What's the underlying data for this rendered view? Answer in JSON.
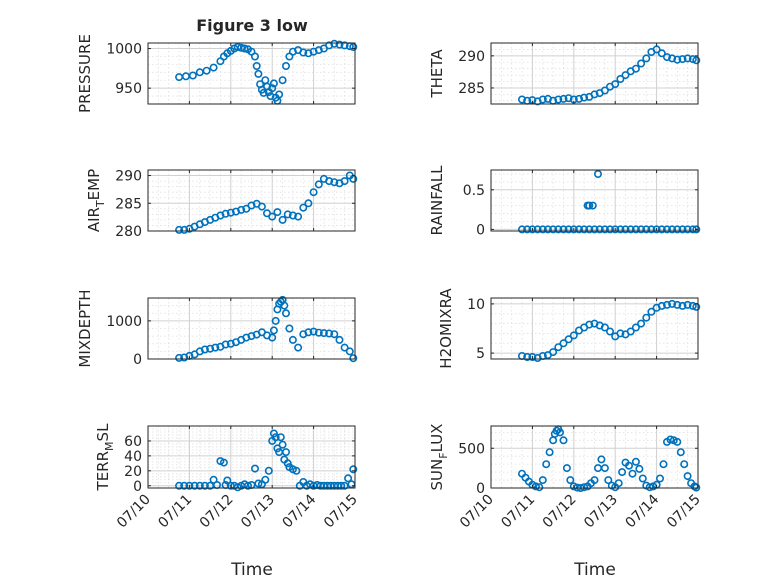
{
  "figure": {
    "title": "Figure 3 low",
    "xlabel": "Time",
    "marker_color": "#0072BD",
    "axis_color": "#262626",
    "grid_color": "#dfdfdf"
  },
  "chart_data": [
    {
      "type": "scatter",
      "ylabel": "PRESSURE",
      "xlim": [
        "07/10 00:00",
        "07/15 00:00"
      ],
      "ylim": [
        930,
        1007
      ],
      "yticks": [
        950,
        1000
      ],
      "ytick_labels": [
        "950",
        "1000"
      ],
      "xticks": [
        "07/10",
        "07/11",
        "07/12",
        "07/13",
        "07/14",
        "07/15"
      ],
      "show_xtick_labels": false,
      "grid": true,
      "minor_grid": true,
      "x": [
        "07/10 18:00",
        "07/10 22:00",
        "07/11 02:00",
        "07/11 06:00",
        "07/11 10:00",
        "07/11 14:00",
        "07/11 18:00",
        "07/11 20:00",
        "07/11 22:00",
        "07/12 00:00",
        "07/12 02:00",
        "07/12 04:00",
        "07/12 06:00",
        "07/12 08:00",
        "07/12 10:00",
        "07/12 12:00",
        "07/12 14:00",
        "07/12 15:00",
        "07/12 16:00",
        "07/12 17:00",
        "07/12 18:00",
        "07/12 19:00",
        "07/12 20:00",
        "07/12 21:00",
        "07/12 22:00",
        "07/12 23:00",
        "07/13 00:00",
        "07/13 01:00",
        "07/13 02:00",
        "07/13 03:00",
        "07/13 04:00",
        "07/13 06:00",
        "07/13 08:00",
        "07/13 10:00",
        "07/13 12:00",
        "07/13 15:00",
        "07/13 18:00",
        "07/13 21:00",
        "07/14 00:00",
        "07/14 03:00",
        "07/14 06:00",
        "07/14 09:00",
        "07/14 12:00",
        "07/14 15:00",
        "07/14 18:00",
        "07/14 21:00",
        "07/14 23:00"
      ],
      "y": [
        964,
        965,
        966,
        970,
        972,
        976,
        984,
        990,
        994,
        997,
        1000,
        1002,
        1001,
        1000,
        999,
        996,
        990,
        978,
        968,
        955,
        948,
        944,
        960,
        952,
        945,
        940,
        950,
        956,
        938,
        934,
        942,
        960,
        978,
        990,
        996,
        998,
        995,
        994,
        996,
        998,
        1000,
        1004,
        1006,
        1005,
        1004,
        1003,
        1002
      ]
    },
    {
      "type": "scatter",
      "ylabel": "THETA",
      "xlim": [
        "07/10 00:00",
        "07/15 00:00"
      ],
      "ylim": [
        282.5,
        292
      ],
      "yticks": [
        285,
        290
      ],
      "ytick_labels": [
        "285",
        "290"
      ],
      "xticks": [
        "07/10",
        "07/11",
        "07/12",
        "07/13",
        "07/14",
        "07/15"
      ],
      "show_xtick_labels": false,
      "grid": true,
      "minor_grid": true,
      "x": [
        "07/10 18:00",
        "07/10 21:00",
        "07/11 00:00",
        "07/11 03:00",
        "07/11 06:00",
        "07/11 09:00",
        "07/11 12:00",
        "07/11 15:00",
        "07/11 18:00",
        "07/11 21:00",
        "07/12 00:00",
        "07/12 03:00",
        "07/12 06:00",
        "07/12 09:00",
        "07/12 12:00",
        "07/12 15:00",
        "07/12 18:00",
        "07/12 21:00",
        "07/13 00:00",
        "07/13 03:00",
        "07/13 06:00",
        "07/13 09:00",
        "07/13 12:00",
        "07/13 15:00",
        "07/13 18:00",
        "07/13 21:00",
        "07/14 00:00",
        "07/14 03:00",
        "07/14 06:00",
        "07/14 09:00",
        "07/14 12:00",
        "07/14 15:00",
        "07/14 18:00",
        "07/14 21:00",
        "07/14 23:00"
      ],
      "y": [
        283.2,
        283.0,
        283.1,
        282.9,
        283.2,
        283.3,
        283.0,
        283.2,
        283.3,
        283.4,
        283.2,
        283.3,
        283.5,
        283.6,
        284.0,
        284.2,
        284.6,
        285.2,
        285.6,
        286.4,
        287.0,
        287.6,
        288.0,
        288.8,
        289.6,
        290.6,
        291.0,
        290.4,
        289.8,
        289.6,
        289.4,
        289.5,
        289.6,
        289.5,
        289.3
      ]
    },
    {
      "type": "scatter",
      "ylabel": "AIR_TEMP",
      "xlim": [
        "07/10 00:00",
        "07/15 00:00"
      ],
      "ylim": [
        280,
        291
      ],
      "yticks": [
        280,
        285,
        290
      ],
      "ytick_labels": [
        "280",
        "285",
        "290"
      ],
      "xticks": [
        "07/10",
        "07/11",
        "07/12",
        "07/13",
        "07/14",
        "07/15"
      ],
      "show_xtick_labels": false,
      "grid": true,
      "minor_grid": true,
      "x": [
        "07/10 18:00",
        "07/10 21:00",
        "07/11 00:00",
        "07/11 03:00",
        "07/11 06:00",
        "07/11 09:00",
        "07/11 12:00",
        "07/11 15:00",
        "07/11 18:00",
        "07/11 21:00",
        "07/12 00:00",
        "07/12 03:00",
        "07/12 06:00",
        "07/12 09:00",
        "07/12 12:00",
        "07/12 15:00",
        "07/12 18:00",
        "07/12 21:00",
        "07/13 00:00",
        "07/13 03:00",
        "07/13 06:00",
        "07/13 09:00",
        "07/13 12:00",
        "07/13 15:00",
        "07/13 18:00",
        "07/13 21:00",
        "07/14 00:00",
        "07/14 03:00",
        "07/14 06:00",
        "07/14 09:00",
        "07/14 12:00",
        "07/14 15:00",
        "07/14 18:00",
        "07/14 21:00",
        "07/14 23:00"
      ],
      "y": [
        280.2,
        280.2,
        280.4,
        280.8,
        281.2,
        281.6,
        282.0,
        282.4,
        282.8,
        283.1,
        283.3,
        283.5,
        283.8,
        284.0,
        284.6,
        284.9,
        284.4,
        283.2,
        282.6,
        283.4,
        282.0,
        283.0,
        282.8,
        282.6,
        284.2,
        285.0,
        287.0,
        288.4,
        289.4,
        289.0,
        288.8,
        288.6,
        289.0,
        290.0,
        289.4
      ]
    },
    {
      "type": "scatter",
      "ylabel": "RAINFALL",
      "xlim": [
        "07/10 00:00",
        "07/15 00:00"
      ],
      "ylim": [
        -0.02,
        0.75
      ],
      "yticks": [
        0,
        0.5
      ],
      "ytick_labels": [
        "0",
        "0.5"
      ],
      "xticks": [
        "07/10",
        "07/11",
        "07/12",
        "07/13",
        "07/14",
        "07/15"
      ],
      "show_xtick_labels": false,
      "grid": true,
      "minor_grid": true,
      "x": [
        "07/10 18:00",
        "07/10 21:00",
        "07/11 00:00",
        "07/11 03:00",
        "07/11 06:00",
        "07/11 09:00",
        "07/11 12:00",
        "07/11 15:00",
        "07/11 18:00",
        "07/11 21:00",
        "07/12 00:00",
        "07/12 03:00",
        "07/12 06:00",
        "07/12 09:00",
        "07/12 12:00",
        "07/12 15:00",
        "07/12 18:00",
        "07/12 21:00",
        "07/13 00:00",
        "07/13 03:00",
        "07/13 06:00",
        "07/13 09:00",
        "07/13 12:00",
        "07/13 15:00",
        "07/13 18:00",
        "07/13 21:00",
        "07/14 00:00",
        "07/14 03:00",
        "07/14 06:00",
        "07/14 09:00",
        "07/14 12:00",
        "07/14 15:00",
        "07/14 18:00",
        "07/14 21:00",
        "07/14 23:00",
        "07/12 08:00",
        "07/12 09:00",
        "07/12 11:00",
        "07/12 14:00"
      ],
      "y": [
        0,
        0,
        0,
        0,
        0,
        0,
        0,
        0,
        0,
        0,
        0,
        0,
        0,
        0,
        0,
        0,
        0,
        0,
        0,
        0,
        0,
        0,
        0,
        0,
        0,
        0,
        0,
        0,
        0,
        0,
        0,
        0,
        0,
        0,
        0,
        0.3,
        0.3,
        0.3,
        0.7
      ]
    },
    {
      "type": "scatter",
      "ylabel": "MIXDEPTH",
      "xlim": [
        "07/10 00:00",
        "07/15 00:00"
      ],
      "ylim": [
        0,
        1600
      ],
      "yticks": [
        0,
        1000
      ],
      "ytick_labels": [
        "0",
        "1000"
      ],
      "xticks": [
        "07/10",
        "07/11",
        "07/12",
        "07/13",
        "07/14",
        "07/15"
      ],
      "show_xtick_labels": false,
      "grid": true,
      "minor_grid": true,
      "x": [
        "07/10 18:00",
        "07/10 21:00",
        "07/11 00:00",
        "07/11 03:00",
        "07/11 06:00",
        "07/11 09:00",
        "07/11 12:00",
        "07/11 15:00",
        "07/11 18:00",
        "07/11 21:00",
        "07/12 00:00",
        "07/12 03:00",
        "07/12 06:00",
        "07/12 09:00",
        "07/12 12:00",
        "07/12 15:00",
        "07/12 18:00",
        "07/12 21:00",
        "07/13 00:00",
        "07/13 01:00",
        "07/13 02:00",
        "07/13 03:00",
        "07/13 04:00",
        "07/13 05:00",
        "07/13 06:00",
        "07/13 07:00",
        "07/13 08:00",
        "07/13 10:00",
        "07/13 12:00",
        "07/13 15:00",
        "07/13 18:00",
        "07/13 21:00",
        "07/14 00:00",
        "07/14 03:00",
        "07/14 06:00",
        "07/14 09:00",
        "07/14 12:00",
        "07/14 15:00",
        "07/14 18:00",
        "07/14 21:00",
        "07/14 23:00"
      ],
      "y": [
        30,
        40,
        80,
        120,
        200,
        250,
        270,
        300,
        320,
        380,
        400,
        440,
        500,
        560,
        600,
        640,
        700,
        620,
        560,
        750,
        1000,
        1300,
        1450,
        1500,
        1550,
        1400,
        1200,
        800,
        500,
        300,
        650,
        700,
        720,
        690,
        680,
        670,
        650,
        500,
        300,
        200,
        20
      ]
    },
    {
      "type": "scatter",
      "ylabel": "H2OMIXRA",
      "xlim": [
        "07/10 00:00",
        "07/15 00:00"
      ],
      "ylim": [
        4.4,
        10.6
      ],
      "yticks": [
        5,
        10
      ],
      "ytick_labels": [
        "5",
        "10"
      ],
      "xticks": [
        "07/10",
        "07/11",
        "07/12",
        "07/13",
        "07/14",
        "07/15"
      ],
      "show_xtick_labels": false,
      "grid": true,
      "minor_grid": true,
      "x": [
        "07/10 18:00",
        "07/10 21:00",
        "07/11 00:00",
        "07/11 03:00",
        "07/11 06:00",
        "07/11 09:00",
        "07/11 12:00",
        "07/11 15:00",
        "07/11 18:00",
        "07/11 21:00",
        "07/12 00:00",
        "07/12 03:00",
        "07/12 06:00",
        "07/12 09:00",
        "07/12 12:00",
        "07/12 15:00",
        "07/12 18:00",
        "07/12 21:00",
        "07/13 00:00",
        "07/13 03:00",
        "07/13 06:00",
        "07/13 09:00",
        "07/13 12:00",
        "07/13 15:00",
        "07/13 18:00",
        "07/13 21:00",
        "07/14 00:00",
        "07/14 03:00",
        "07/14 06:00",
        "07/14 09:00",
        "07/14 12:00",
        "07/14 15:00",
        "07/14 18:00",
        "07/14 21:00",
        "07/14 23:00"
      ],
      "y": [
        4.7,
        4.6,
        4.6,
        4.5,
        4.7,
        4.8,
        5.1,
        5.6,
        6.0,
        6.4,
        6.8,
        7.3,
        7.6,
        7.9,
        8.0,
        7.8,
        7.6,
        7.2,
        6.7,
        7.0,
        6.9,
        7.2,
        7.6,
        8.0,
        8.6,
        9.2,
        9.6,
        9.8,
        9.9,
        10.0,
        9.9,
        9.8,
        9.9,
        9.8,
        9.7
      ]
    },
    {
      "type": "scatter",
      "ylabel": "TERR_MSL",
      "xlim": [
        "07/10 00:00",
        "07/15 00:00"
      ],
      "ylim": [
        -3,
        80
      ],
      "yticks": [
        0,
        20,
        40,
        60
      ],
      "ytick_labels": [
        "0",
        "20",
        "40",
        "60"
      ],
      "xticks": [
        "07/10",
        "07/11",
        "07/12",
        "07/13",
        "07/14",
        "07/15"
      ],
      "xtick_labels": [
        "07/10",
        "07/11",
        "07/12",
        "07/13",
        "07/14",
        "07/15"
      ],
      "show_xtick_labels": true,
      "grid": true,
      "minor_grid": true,
      "x": [
        "07/10 18:00",
        "07/10 21:00",
        "07/11 00:00",
        "07/11 03:00",
        "07/11 06:00",
        "07/11 09:00",
        "07/11 12:00",
        "07/11 14:00",
        "07/11 16:00",
        "07/11 18:00",
        "07/11 20:00",
        "07/11 21:00",
        "07/11 22:00",
        "07/12 00:00",
        "07/12 02:00",
        "07/12 04:00",
        "07/12 06:00",
        "07/12 08:00",
        "07/12 10:00",
        "07/12 12:00",
        "07/12 14:00",
        "07/12 16:00",
        "07/12 18:00",
        "07/12 20:00",
        "07/12 22:00",
        "07/13 00:00",
        "07/13 01:00",
        "07/13 02:00",
        "07/13 03:00",
        "07/13 04:00",
        "07/13 05:00",
        "07/13 06:00",
        "07/13 07:00",
        "07/13 08:00",
        "07/13 09:00",
        "07/13 10:00",
        "07/13 12:00",
        "07/13 14:00",
        "07/13 16:00",
        "07/13 18:00",
        "07/13 20:00",
        "07/13 22:00",
        "07/14 00:00",
        "07/14 02:00",
        "07/14 04:00",
        "07/14 06:00",
        "07/14 08:00",
        "07/14 10:00",
        "07/14 12:00",
        "07/14 14:00",
        "07/14 16:00",
        "07/14 18:00",
        "07/14 20:00",
        "07/14 22:00",
        "07/14 23:00"
      ],
      "y": [
        0,
        0,
        0,
        0,
        0,
        0,
        0,
        8,
        1,
        33,
        31,
        1,
        7,
        0,
        0,
        -2,
        0,
        2,
        0,
        1,
        23,
        3,
        2,
        8,
        20,
        60,
        70,
        65,
        50,
        45,
        65,
        55,
        35,
        45,
        30,
        25,
        22,
        20,
        0,
        5,
        0,
        2,
        0,
        1,
        0,
        0,
        0,
        0,
        0,
        0,
        0,
        0,
        10,
        2,
        22
      ]
    },
    {
      "type": "scatter",
      "ylabel": "SUN_FLUX",
      "xlim": [
        "07/10 00:00",
        "07/15 00:00"
      ],
      "ylim": [
        0,
        780
      ],
      "yticks": [
        0,
        500
      ],
      "ytick_labels": [
        "0",
        "500"
      ],
      "xticks": [
        "07/10",
        "07/11",
        "07/12",
        "07/13",
        "07/14",
        "07/15"
      ],
      "xtick_labels": [
        "07/10",
        "07/11",
        "07/12",
        "07/13",
        "07/14",
        "07/15"
      ],
      "show_xtick_labels": true,
      "grid": true,
      "minor_grid": true,
      "x": [
        "07/10 18:00",
        "07/10 20:00",
        "07/10 22:00",
        "07/11 00:00",
        "07/11 02:00",
        "07/11 04:00",
        "07/11 06:00",
        "07/11 08:00",
        "07/11 10:00",
        "07/11 12:00",
        "07/11 13:00",
        "07/11 14:00",
        "07/11 15:00",
        "07/11 16:00",
        "07/11 18:00",
        "07/11 20:00",
        "07/11 22:00",
        "07/12 00:00",
        "07/12 02:00",
        "07/12 04:00",
        "07/12 06:00",
        "07/12 08:00",
        "07/12 10:00",
        "07/12 12:00",
        "07/12 14:00",
        "07/12 16:00",
        "07/12 18:00",
        "07/12 20:00",
        "07/12 22:00",
        "07/13 00:00",
        "07/13 02:00",
        "07/13 04:00",
        "07/13 06:00",
        "07/13 08:00",
        "07/13 10:00",
        "07/13 12:00",
        "07/13 14:00",
        "07/13 16:00",
        "07/13 18:00",
        "07/13 20:00",
        "07/13 22:00",
        "07/14 00:00",
        "07/14 02:00",
        "07/14 04:00",
        "07/14 06:00",
        "07/14 08:00",
        "07/14 10:00",
        "07/14 12:00",
        "07/14 14:00",
        "07/14 16:00",
        "07/14 18:00",
        "07/14 20:00",
        "07/14 22:00",
        "07/14 23:00"
      ],
      "y": [
        180,
        130,
        80,
        40,
        20,
        10,
        100,
        300,
        450,
        600,
        680,
        720,
        740,
        700,
        600,
        250,
        100,
        20,
        5,
        0,
        10,
        20,
        60,
        100,
        250,
        360,
        250,
        100,
        30,
        10,
        60,
        200,
        320,
        280,
        180,
        330,
        240,
        120,
        30,
        10,
        20,
        40,
        120,
        300,
        580,
        610,
        600,
        580,
        450,
        300,
        150,
        60,
        20,
        5
      ]
    }
  ]
}
